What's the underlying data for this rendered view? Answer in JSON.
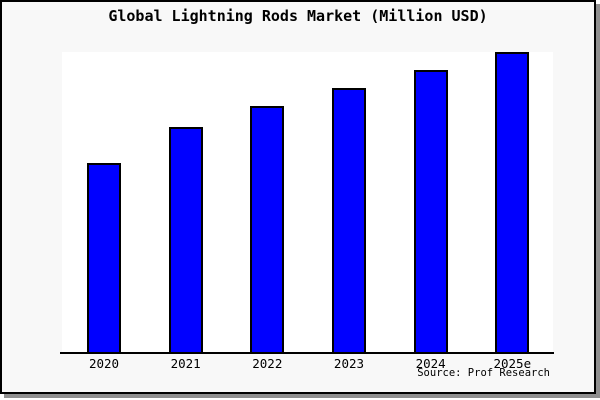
{
  "chart": {
    "title": "Global Lightning Rods Market (Million USD)",
    "source": "Source: Prof Research"
  },
  "chart_data": {
    "type": "bar",
    "title": "Global Lightning Rods Market (Million USD)",
    "categories": [
      "2020",
      "2021",
      "2022",
      "2023",
      "2024",
      "2025e"
    ],
    "values": [
      63,
      75,
      82,
      88,
      94,
      100
    ],
    "values_note": "No y-axis labels are shown in the image; values are bar heights measured as percent of the tallest bar (2025e = 100).",
    "xlabel": "",
    "ylabel": "",
    "ylim": [
      0,
      100
    ],
    "y_axis_visible": false,
    "gridlines": false,
    "legend": false,
    "bar_color": "#0000ff",
    "bar_border_color": "#000000",
    "plot_background": "#ffffff",
    "figure_background": "#f8f8f8",
    "source": "Source: Prof Research"
  }
}
